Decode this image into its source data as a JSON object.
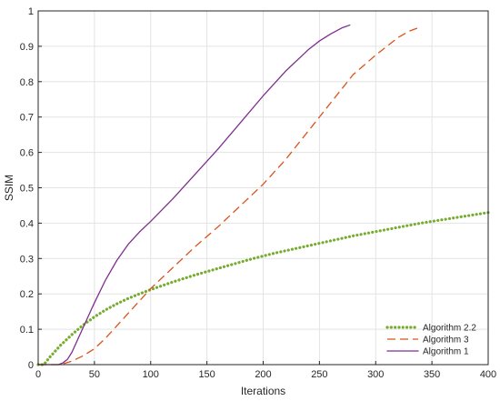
{
  "chart_data": {
    "type": "line",
    "xlabel": "Iterations",
    "ylabel": "SSIM",
    "xlim": [
      0,
      400
    ],
    "ylim": [
      0,
      1
    ],
    "xticks": [
      0,
      50,
      100,
      150,
      200,
      250,
      300,
      350,
      400
    ],
    "yticks": [
      0,
      0.1,
      0.2,
      0.3,
      0.4,
      0.5,
      0.6,
      0.7,
      0.8,
      0.9,
      1
    ],
    "xtick_labels": [
      "0",
      "50",
      "100",
      "150",
      "200",
      "250",
      "300",
      "350",
      "400"
    ],
    "ytick_labels": [
      "0",
      "0.1",
      "0.2",
      "0.3",
      "0.4",
      "0.5",
      "0.6",
      "0.7",
      "0.8",
      "0.9",
      "1"
    ],
    "grid": true,
    "legend_position": "bottom-right",
    "series": [
      {
        "name": "Algorithm 2.2",
        "color": "#77ac30",
        "style": "dotted",
        "x": [
          0,
          5,
          10,
          20,
          30,
          40,
          50,
          60,
          70,
          80,
          90,
          100,
          110,
          120,
          130,
          140,
          150,
          160,
          170,
          180,
          190,
          200,
          210,
          220,
          230,
          240,
          250,
          260,
          270,
          280,
          290,
          300,
          310,
          320,
          330,
          340,
          350,
          360,
          370,
          380,
          390,
          400
        ],
        "y": [
          0,
          0,
          0.02,
          0.055,
          0.085,
          0.112,
          0.135,
          0.155,
          0.172,
          0.187,
          0.2,
          0.212,
          0.223,
          0.234,
          0.244,
          0.254,
          0.263,
          0.272,
          0.281,
          0.29,
          0.299,
          0.307,
          0.315,
          0.322,
          0.329,
          0.336,
          0.343,
          0.35,
          0.357,
          0.364,
          0.37,
          0.376,
          0.382,
          0.388,
          0.394,
          0.4,
          0.405,
          0.41,
          0.415,
          0.42,
          0.425,
          0.43
        ]
      },
      {
        "name": "Algorithm 3",
        "color": "#d95319",
        "style": "dashed",
        "x": [
          0,
          10,
          20,
          30,
          40,
          50,
          60,
          70,
          80,
          90,
          100,
          120,
          140,
          160,
          180,
          200,
          220,
          240,
          260,
          280,
          300,
          310,
          320,
          330,
          340
        ],
        "y": [
          0,
          0,
          0,
          0.01,
          0.025,
          0.045,
          0.075,
          0.11,
          0.145,
          0.18,
          0.215,
          0.275,
          0.335,
          0.39,
          0.45,
          0.51,
          0.58,
          0.66,
          0.74,
          0.82,
          0.875,
          0.9,
          0.925,
          0.943,
          0.955
        ]
      },
      {
        "name": "Algorithm 1",
        "color": "#7e2f8e",
        "style": "solid",
        "x": [
          0,
          10,
          18,
          22,
          26,
          30,
          35,
          40,
          45,
          50,
          60,
          70,
          80,
          90,
          100,
          120,
          140,
          160,
          180,
          200,
          220,
          240,
          250,
          260,
          270,
          277
        ],
        "y": [
          0,
          0,
          0,
          0.005,
          0.015,
          0.035,
          0.07,
          0.105,
          0.14,
          0.175,
          0.24,
          0.295,
          0.34,
          0.375,
          0.405,
          0.47,
          0.54,
          0.61,
          0.685,
          0.76,
          0.83,
          0.89,
          0.915,
          0.935,
          0.952,
          0.96
        ]
      }
    ]
  }
}
